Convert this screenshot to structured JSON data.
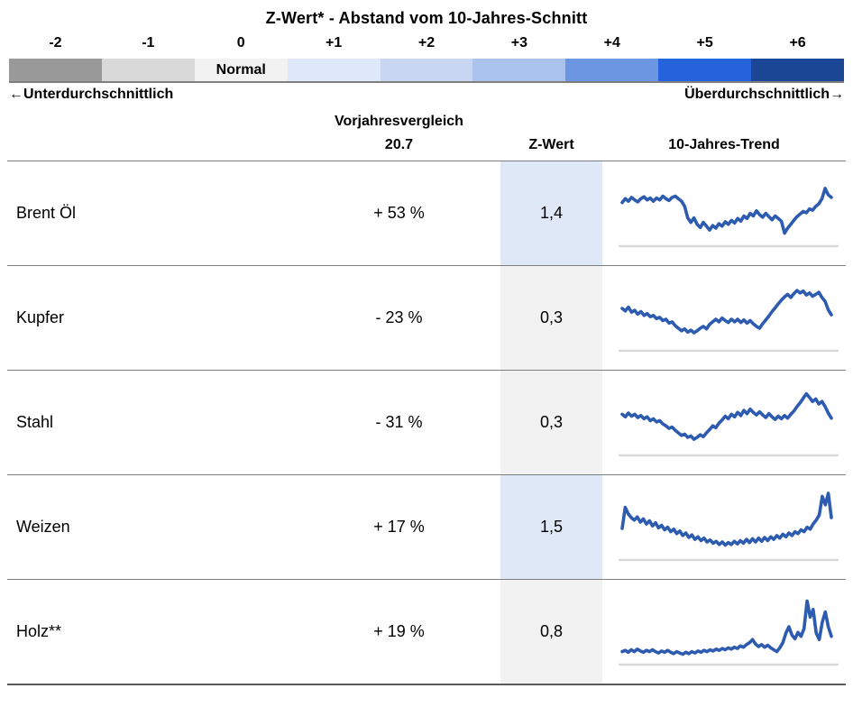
{
  "title": "Z-Wert* - Abstand vom 10-Jahres-Schnitt",
  "scale": {
    "items": [
      {
        "label": "-2",
        "color": "#999999",
        "text": ""
      },
      {
        "label": "-1",
        "color": "#d9d9d9",
        "text": ""
      },
      {
        "label": "0",
        "color": "#f2f2f2",
        "text": "Normal"
      },
      {
        "label": "+1",
        "color": "#dfe8f8",
        "text": ""
      },
      {
        "label": "+2",
        "color": "#c8d6f1",
        "text": ""
      },
      {
        "label": "+3",
        "color": "#aac3ec",
        "text": ""
      },
      {
        "label": "+4",
        "color": "#6d96e2",
        "text": ""
      },
      {
        "label": "+5",
        "color": "#2463dc",
        "text": ""
      },
      {
        "label": "+6",
        "color": "#1b4695",
        "text": ""
      }
    ],
    "left_arrow": "←",
    "left_label": "Unterdurchschnittlich",
    "right_label": "Überdurchschnittlich",
    "right_arrow": "→"
  },
  "header": {
    "group": "Vorjahresvergleich",
    "col_value": "20.7",
    "col_z": "Z-Wert",
    "col_trend": "10-Jahres-Trend"
  },
  "rows": [
    {
      "name": "Brent Öl",
      "change": "+ 53 %",
      "z": "1,4",
      "z_bg": "#dfe8f6"
    },
    {
      "name": "Kupfer",
      "change": "- 23 %",
      "z": "0,3",
      "z_bg": "#f2f2f2"
    },
    {
      "name": "Stahl",
      "change": "- 31 %",
      "z": "0,3",
      "z_bg": "#f2f2f2"
    },
    {
      "name": "Weizen",
      "change": "+ 17 %",
      "z": "1,5",
      "z_bg": "#dfe8f6"
    },
    {
      "name": "Holz**",
      "change": "+ 19 %",
      "z": "0,8",
      "z_bg": "#f2f2f2"
    }
  ],
  "colors": {
    "sparkline": "#2d5bb0",
    "baseline": "#d9d9d9",
    "highlight_blue": "#dfe8f6",
    "neutral_gray": "#f2f2f2"
  },
  "chart_data": [
    {
      "type": "line",
      "name": "Brent Öl 10-Jahres-Trend",
      "note": "normalisierte Preisentwicklung 0-100, keine Achsenbeschriftung sichtbar",
      "values": [
        64,
        70,
        66,
        72,
        68,
        65,
        70,
        73,
        68,
        71,
        66,
        71,
        68,
        74,
        70,
        67,
        72,
        74,
        70,
        66,
        58,
        40,
        33,
        40,
        30,
        25,
        33,
        27,
        21,
        28,
        24,
        31,
        27,
        34,
        30,
        36,
        32,
        39,
        35,
        43,
        39,
        47,
        43,
        51,
        45,
        41,
        47,
        42,
        37,
        43,
        39,
        35,
        16,
        24,
        30,
        36,
        42,
        46,
        50,
        48,
        54,
        52,
        58,
        62,
        70,
        86,
        76,
        72
      ]
    },
    {
      "type": "line",
      "name": "Kupfer 10-Jahres-Trend",
      "values": [
        62,
        58,
        64,
        56,
        59,
        53,
        57,
        51,
        54,
        49,
        51,
        46,
        48,
        43,
        45,
        39,
        41,
        35,
        31,
        27,
        30,
        25,
        28,
        24,
        27,
        31,
        34,
        30,
        37,
        41,
        45,
        41,
        47,
        43,
        40,
        45,
        41,
        45,
        40,
        44,
        39,
        43,
        38,
        34,
        31,
        38,
        44,
        50,
        57,
        63,
        69,
        75,
        80,
        84,
        79,
        85,
        90,
        86,
        89,
        83,
        86,
        81,
        84,
        87,
        79,
        73,
        60,
        52
      ]
    },
    {
      "type": "line",
      "name": "Stahl 10-Jahres-Trend",
      "values": [
        60,
        56,
        62,
        57,
        60,
        55,
        58,
        53,
        56,
        50,
        53,
        48,
        50,
        45,
        42,
        38,
        40,
        35,
        31,
        27,
        29,
        24,
        26,
        21,
        24,
        28,
        25,
        31,
        36,
        42,
        39,
        46,
        51,
        57,
        53,
        60,
        56,
        63,
        58,
        66,
        61,
        68,
        63,
        59,
        64,
        59,
        55,
        61,
        56,
        52,
        57,
        53,
        58,
        54,
        60,
        65,
        72,
        78,
        85,
        92,
        86,
        80,
        84,
        76,
        80,
        72,
        62,
        54
      ]
    },
    {
      "type": "line",
      "name": "Weizen 10-Jahres-Trend",
      "values": [
        45,
        78,
        68,
        62,
        58,
        63,
        55,
        60,
        52,
        57,
        49,
        54,
        46,
        50,
        43,
        47,
        40,
        44,
        37,
        41,
        34,
        38,
        31,
        35,
        28,
        32,
        26,
        30,
        24,
        27,
        22,
        25,
        20,
        24,
        19,
        23,
        20,
        25,
        21,
        26,
        22,
        28,
        23,
        29,
        24,
        30,
        25,
        31,
        26,
        32,
        28,
        34,
        30,
        36,
        32,
        38,
        34,
        40,
        37,
        43,
        40,
        47,
        44,
        52,
        58,
        66,
        95,
        82,
        100,
        62
      ]
    },
    {
      "type": "line",
      "name": "Holz 10-Jahres-Trend",
      "values": [
        16,
        18,
        15,
        19,
        16,
        20,
        17,
        15,
        18,
        16,
        19,
        16,
        14,
        17,
        15,
        18,
        15,
        13,
        16,
        14,
        12,
        15,
        13,
        16,
        14,
        17,
        15,
        18,
        16,
        19,
        17,
        20,
        18,
        21,
        19,
        22,
        20,
        23,
        21,
        25,
        23,
        27,
        30,
        35,
        28,
        24,
        27,
        23,
        26,
        22,
        19,
        16,
        22,
        30,
        45,
        55,
        42,
        36,
        46,
        40,
        52,
        95,
        70,
        82,
        45,
        35,
        62,
        78,
        55,
        40
      ]
    }
  ]
}
